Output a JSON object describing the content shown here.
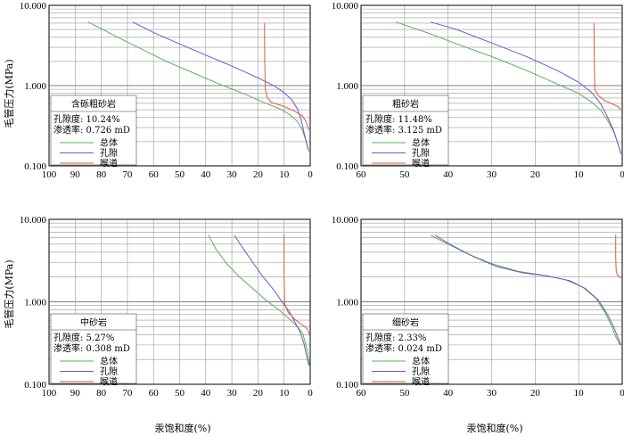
{
  "figure": {
    "ylabel": "毛管压力(MPa)",
    "xlabel": "汞饱和度(%)"
  },
  "chart_data": [
    {
      "type": "line",
      "title": "含砾粗砂岩",
      "porosity_text": "孔隙度: 10.24%",
      "permeability_text": "渗透率: 0.726 mD",
      "x_reversed": true,
      "xlim": [
        100,
        0
      ],
      "ylim": [
        0.1,
        10
      ],
      "y_scale": "log",
      "x_ticks": [
        "100",
        "90",
        "80",
        "70",
        "60",
        "50",
        "40",
        "30",
        "20",
        "10",
        "0"
      ],
      "y_ticks": [
        "10.000",
        "1.000",
        "0.100"
      ],
      "series": [
        {
          "name": "总体",
          "color": "#58b058",
          "points": [
            [
              85,
              6.2
            ],
            [
              75,
              4.2
            ],
            [
              65,
              2.9
            ],
            [
              55,
              2.0
            ],
            [
              45,
              1.45
            ],
            [
              35,
              1.05
            ],
            [
              25,
              0.78
            ],
            [
              18,
              0.62
            ],
            [
              12,
              0.52
            ],
            [
              8,
              0.44
            ],
            [
              5,
              0.36
            ],
            [
              3,
              0.28
            ],
            [
              1.5,
              0.2
            ],
            [
              0.5,
              0.15
            ]
          ]
        },
        {
          "name": "孔隙",
          "color": "#6a5acd",
          "points": [
            [
              68,
              6.2
            ],
            [
              60,
              4.6
            ],
            [
              50,
              3.3
            ],
            [
              40,
              2.4
            ],
            [
              30,
              1.75
            ],
            [
              20,
              1.25
            ],
            [
              14,
              1.0
            ],
            [
              10,
              0.82
            ],
            [
              7,
              0.66
            ],
            [
              5,
              0.52
            ],
            [
              3.5,
              0.38
            ],
            [
              2.5,
              0.27
            ],
            [
              1.5,
              0.2
            ],
            [
              0.8,
              0.16
            ]
          ]
        },
        {
          "name": "喉道",
          "color": "#e05a40",
          "points": [
            [
              17.5,
              6.0
            ],
            [
              17.4,
              2.0
            ],
            [
              17.2,
              0.9
            ],
            [
              16.5,
              0.72
            ],
            [
              15,
              0.62
            ],
            [
              10,
              0.55
            ],
            [
              6,
              0.48
            ],
            [
              3,
              0.42
            ],
            [
              1.5,
              0.35
            ],
            [
              0.5,
              0.28
            ]
          ]
        }
      ]
    },
    {
      "type": "line",
      "title": "粗砂岩",
      "porosity_text": "孔隙度: 11.48%",
      "permeability_text": "渗透率: 3.125 mD",
      "x_reversed": true,
      "xlim": [
        60,
        0
      ],
      "ylim": [
        0.1,
        10
      ],
      "y_scale": "log",
      "x_ticks": [
        "60",
        "50",
        "40",
        "30",
        "20",
        "10",
        "0"
      ],
      "y_ticks": [
        "10.000",
        "1.000",
        "0.100"
      ],
      "series": [
        {
          "name": "总体",
          "color": "#58b058",
          "points": [
            [
              52,
              6.2
            ],
            [
              45,
              4.6
            ],
            [
              38,
              3.3
            ],
            [
              30,
              2.3
            ],
            [
              22,
              1.55
            ],
            [
              15,
              1.05
            ],
            [
              10,
              0.8
            ],
            [
              7,
              0.62
            ],
            [
              5,
              0.5
            ],
            [
              3.5,
              0.38
            ],
            [
              2,
              0.27
            ],
            [
              1,
              0.19
            ],
            [
              0.3,
              0.14
            ]
          ]
        },
        {
          "name": "孔隙",
          "color": "#6a5acd",
          "points": [
            [
              44,
              6.2
            ],
            [
              38,
              5.0
            ],
            [
              30,
              3.4
            ],
            [
              22,
              2.3
            ],
            [
              15,
              1.55
            ],
            [
              10,
              1.1
            ],
            [
              7,
              0.82
            ],
            [
              5,
              0.6
            ],
            [
              3.5,
              0.42
            ],
            [
              2,
              0.28
            ],
            [
              1,
              0.19
            ],
            [
              0.3,
              0.14
            ]
          ]
        },
        {
          "name": "喉道",
          "color": "#e05a40",
          "points": [
            [
              6.5,
              6.0
            ],
            [
              6.4,
              2.0
            ],
            [
              6.3,
              0.9
            ],
            [
              5.5,
              0.75
            ],
            [
              4,
              0.65
            ],
            [
              2.5,
              0.6
            ],
            [
              1,
              0.55
            ],
            [
              0.3,
              0.5
            ]
          ]
        }
      ]
    },
    {
      "type": "line",
      "title": "中砂岩",
      "porosity_text": "孔隙度: 5.27%",
      "permeability_text": "渗透率: 0.308 mD",
      "x_reversed": true,
      "xlim": [
        100,
        0
      ],
      "ylim": [
        0.1,
        10
      ],
      "y_scale": "log",
      "x_ticks": [
        "100",
        "90",
        "80",
        "70",
        "60",
        "50",
        "40",
        "30",
        "20",
        "10",
        "0"
      ],
      "y_ticks": [
        "10.000",
        "1.000",
        "0.100"
      ],
      "series": [
        {
          "name": "总体",
          "color": "#58b058",
          "points": [
            [
              39,
              6.5
            ],
            [
              36,
              4.3
            ],
            [
              32,
              2.9
            ],
            [
              27,
              2.0
            ],
            [
              22,
              1.45
            ],
            [
              17,
              1.05
            ],
            [
              12,
              0.8
            ],
            [
              8,
              0.62
            ],
            [
              5,
              0.5
            ],
            [
              3,
              0.42
            ],
            [
              2,
              0.33
            ],
            [
              1,
              0.24
            ],
            [
              0.3,
              0.17
            ]
          ]
        },
        {
          "name": "孔隙",
          "color": "#6a5acd",
          "points": [
            [
              29,
              6.4
            ],
            [
              26,
              4.6
            ],
            [
              22,
              3.0
            ],
            [
              18,
              2.0
            ],
            [
              14,
              1.4
            ],
            [
              11,
              1.02
            ],
            [
              8,
              0.76
            ],
            [
              6,
              0.58
            ],
            [
              4,
              0.44
            ],
            [
              2.5,
              0.32
            ],
            [
              1.5,
              0.23
            ],
            [
              0.5,
              0.17
            ]
          ]
        },
        {
          "name": "喉道",
          "color": "#e05a40",
          "points": [
            [
              10,
              6.5
            ],
            [
              10,
              2.0
            ],
            [
              9.8,
              0.95
            ],
            [
              8.5,
              0.75
            ],
            [
              6,
              0.62
            ],
            [
              4,
              0.55
            ],
            [
              2,
              0.5
            ],
            [
              1,
              0.46
            ],
            [
              0.3,
              0.4
            ]
          ]
        }
      ]
    },
    {
      "type": "line",
      "title": "细砂岩",
      "porosity_text": "孔隙度: 2.33%",
      "permeability_text": "渗透率: 0.024 mD",
      "x_reversed": true,
      "xlim": [
        60,
        0
      ],
      "ylim": [
        0.1,
        10
      ],
      "y_scale": "log",
      "x_ticks": [
        "60",
        "50",
        "40",
        "30",
        "20",
        "10",
        "0"
      ],
      "y_ticks": [
        "10.000",
        "1.000",
        "0.100"
      ],
      "series": [
        {
          "name": "总体",
          "color": "#58b058",
          "points": [
            [
              44,
              6.4
            ],
            [
              40,
              5.0
            ],
            [
              35,
              3.7
            ],
            [
              30,
              2.9
            ],
            [
              24,
              2.35
            ],
            [
              18,
              2.1
            ],
            [
              13,
              1.85
            ],
            [
              9,
              1.5
            ],
            [
              6,
              1.1
            ],
            [
              4,
              0.75
            ],
            [
              2.5,
              0.52
            ],
            [
              1.5,
              0.38
            ],
            [
              0.5,
              0.3
            ]
          ]
        },
        {
          "name": "孔隙",
          "color": "#6a5acd",
          "points": [
            [
              43,
              6.4
            ],
            [
              39,
              4.8
            ],
            [
              34,
              3.5
            ],
            [
              29,
              2.7
            ],
            [
              23,
              2.25
            ],
            [
              17,
              2.05
            ],
            [
              12,
              1.8
            ],
            [
              8.5,
              1.45
            ],
            [
              5.5,
              1.05
            ],
            [
              3.5,
              0.72
            ],
            [
              2,
              0.5
            ],
            [
              1,
              0.37
            ],
            [
              0.3,
              0.3
            ]
          ]
        },
        {
          "name": "喉道",
          "color": "#e05a40",
          "points": [
            [
              1.5,
              6.5
            ],
            [
              1.5,
              3.5
            ],
            [
              1.4,
              2.4
            ],
            [
              1.1,
              2.1
            ],
            [
              0.6,
              2.0
            ],
            [
              0.2,
              1.95
            ]
          ]
        }
      ]
    }
  ]
}
